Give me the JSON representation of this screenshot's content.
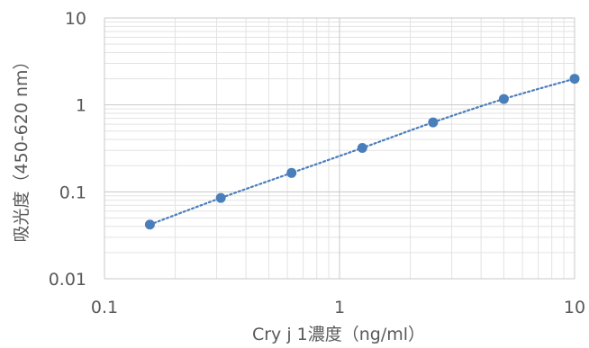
{
  "chart_data": {
    "type": "scatter",
    "x_scale": "log",
    "y_scale": "log",
    "xlim": [
      0.1,
      10
    ],
    "ylim": [
      0.01,
      10
    ],
    "xlabel": "Cry j 1濃度（ng/ml）",
    "ylabel": "吸光度（450-620 nm）",
    "x_tick_labels": [
      "0.1",
      "1",
      "10"
    ],
    "y_tick_labels": [
      "0.01",
      "0.1",
      "1",
      "10"
    ],
    "grid": "major and minor",
    "legend": "none",
    "series": [
      {
        "x": [
          0.156,
          0.3125,
          0.625,
          1.25,
          2.5,
          5,
          10
        ],
        "y": [
          0.042,
          0.085,
          0.165,
          0.32,
          0.63,
          1.17,
          2.0
        ],
        "marker_color": "#4a7ebb",
        "line_style": "dotted",
        "line_color": "#4a7ebb"
      }
    ]
  }
}
